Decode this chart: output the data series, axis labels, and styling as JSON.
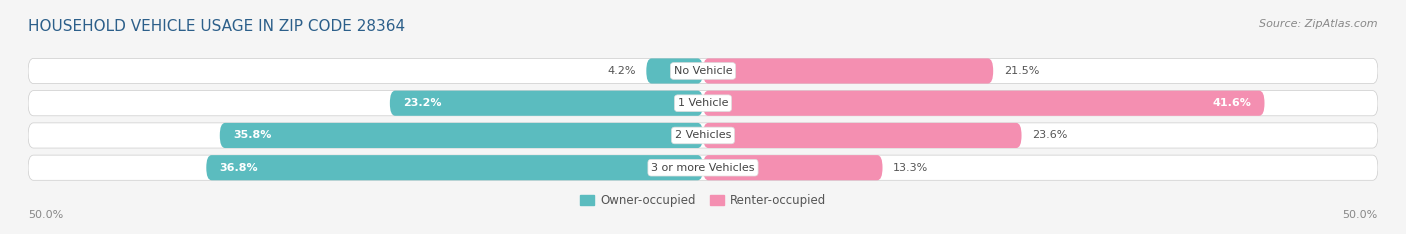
{
  "title": "HOUSEHOLD VEHICLE USAGE IN ZIP CODE 28364",
  "source": "Source: ZipAtlas.com",
  "categories": [
    "No Vehicle",
    "1 Vehicle",
    "2 Vehicles",
    "3 or more Vehicles"
  ],
  "owner_values": [
    4.2,
    23.2,
    35.8,
    36.8
  ],
  "renter_values": [
    21.5,
    41.6,
    23.6,
    13.3
  ],
  "owner_color": "#5bbcbf",
  "renter_color": "#f48fb1",
  "owner_label": "Owner-occupied",
  "renter_label": "Renter-occupied",
  "axis_label_left": "50.0%",
  "axis_label_right": "50.0%",
  "max_val": 50.0,
  "background_color": "#f5f5f5",
  "bar_bg_color": "#e8e8e8",
  "bar_row_bg": "#ffffff",
  "title_fontsize": 11,
  "source_fontsize": 8,
  "label_fontsize": 8,
  "category_fontsize": 8,
  "value_fontsize": 8,
  "legend_fontsize": 8.5
}
